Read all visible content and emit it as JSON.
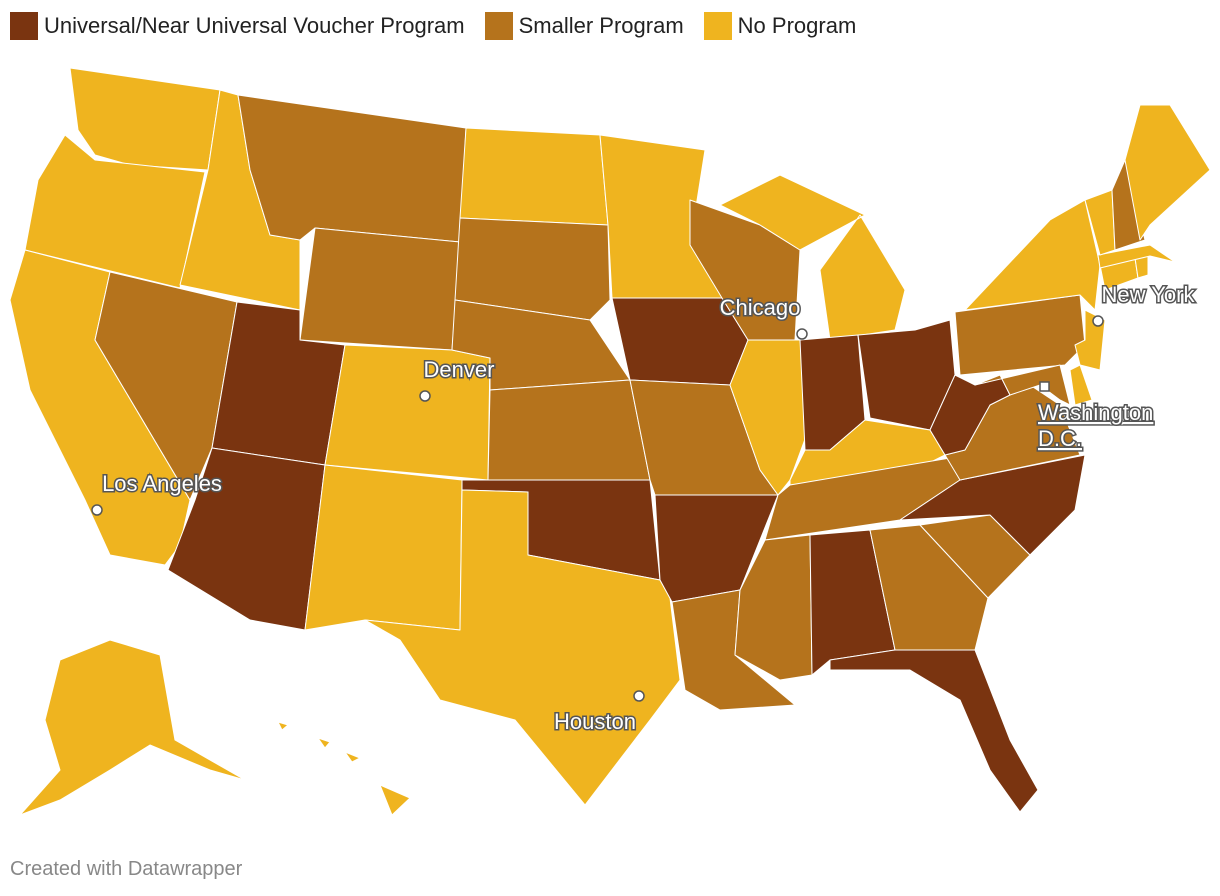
{
  "legend": [
    {
      "label": "Universal/Near Universal Voucher Program",
      "color": "#7a3410"
    },
    {
      "label": "Smaller Program",
      "color": "#b5731c"
    },
    {
      "label": "No Program",
      "color": "#efb41f"
    }
  ],
  "map": {
    "regions": [
      2,
      2,
      2,
      2,
      1,
      1,
      1,
      0,
      0,
      2,
      2,
      2,
      1,
      1,
      1,
      0,
      2,
      2,
      0,
      1,
      0,
      1,
      1,
      2,
      2,
      0,
      0,
      2,
      1,
      1,
      0,
      1,
      0,
      1,
      0,
      1,
      0,
      1,
      2,
      2,
      1,
      2,
      2,
      2,
      2,
      2,
      1,
      2,
      2,
      2
    ]
  },
  "cities": [
    {
      "label": "Chicago"
    },
    {
      "label": "Denver"
    },
    {
      "label": "Los Angeles"
    },
    {
      "label": "Houston"
    },
    {
      "label": "New York"
    },
    {
      "lines": [
        "Washington",
        "D.C."
      ]
    }
  ],
  "footer": "Created with Datawrapper"
}
